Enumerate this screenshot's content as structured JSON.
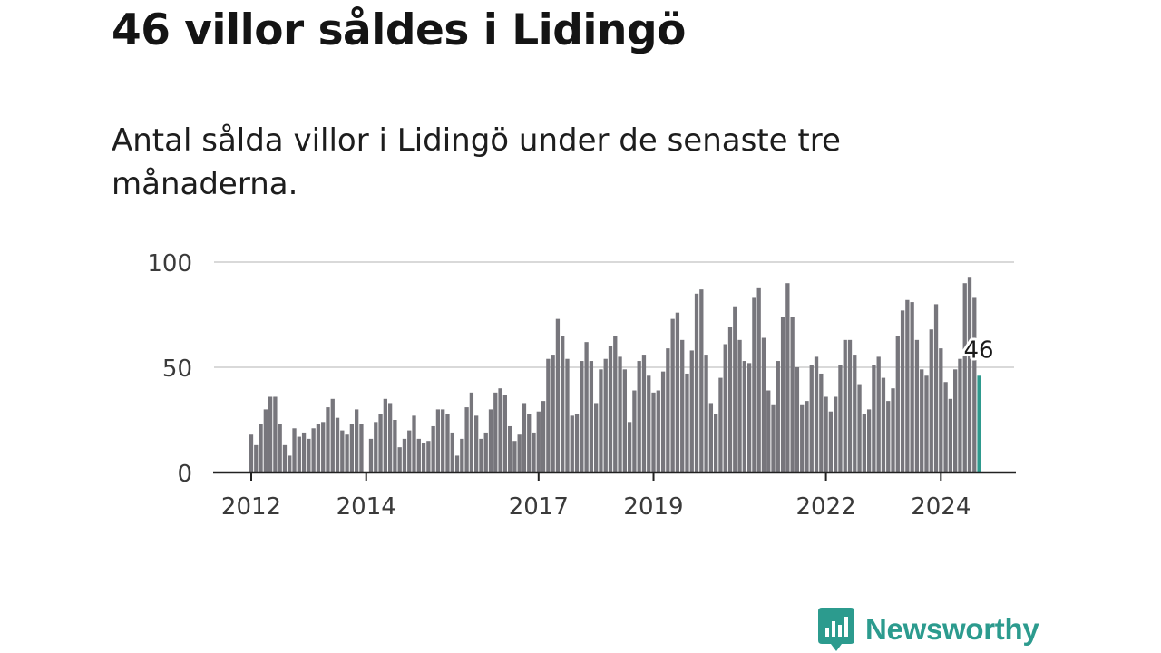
{
  "header": {
    "title": "46 villor såldes i Lidingö",
    "subtitle": "Antal sålda villor i Lidingö under de senaste tre månaderna."
  },
  "colors": {
    "bar": "#77767c",
    "highlight": "#2e9a8e",
    "grid": "#d9d9d9",
    "axis": "#222222",
    "brand": "#2c9b8e"
  },
  "brand": {
    "name": "Newsworthy",
    "icon": "newsworthy-logo-icon"
  },
  "chart_data": {
    "type": "bar",
    "title": "46 villor såldes i Lidingö",
    "xlabel": "",
    "ylabel": "",
    "ylim": [
      0,
      100
    ],
    "y_ticks": [
      0,
      50,
      100
    ],
    "x_ticks": [
      "2012",
      "2014",
      "2017",
      "2019",
      "2022",
      "2024"
    ],
    "x_tick_start_index": [
      0,
      24,
      60,
      84,
      120,
      144
    ],
    "grid": true,
    "start": "2012-01",
    "values": [
      18,
      13,
      23,
      30,
      36,
      36,
      23,
      13,
      8,
      21,
      17,
      19,
      16,
      21,
      23,
      24,
      31,
      35,
      26,
      20,
      18,
      23,
      30,
      23,
      0,
      16,
      24,
      28,
      35,
      33,
      25,
      12,
      16,
      20,
      27,
      16,
      14,
      15,
      22,
      30,
      30,
      28,
      19,
      8,
      16,
      31,
      38,
      27,
      16,
      19,
      30,
      38,
      40,
      37,
      22,
      15,
      18,
      33,
      28,
      19,
      29,
      34,
      54,
      56,
      73,
      65,
      54,
      27,
      28,
      53,
      62,
      53,
      33,
      49,
      54,
      60,
      65,
      55,
      49,
      24,
      39,
      53,
      56,
      46,
      38,
      39,
      48,
      59,
      73,
      76,
      63,
      47,
      58,
      85,
      87,
      56,
      33,
      28,
      45,
      61,
      69,
      79,
      63,
      53,
      52,
      83,
      88,
      64,
      39,
      32,
      53,
      74,
      90,
      74,
      50,
      32,
      34,
      51,
      55,
      47,
      36,
      29,
      36,
      51,
      63,
      63,
      56,
      42,
      28,
      30,
      51,
      55,
      45,
      34,
      40,
      65,
      77,
      82,
      81,
      63,
      49,
      46,
      68,
      80,
      59,
      43,
      35,
      49,
      54,
      90,
      93,
      83,
      46
    ],
    "highlight_index": 152,
    "highlight_label": "46"
  }
}
